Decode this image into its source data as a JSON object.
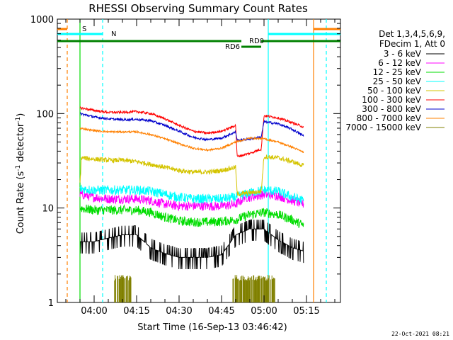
{
  "chart_data": {
    "type": "line",
    "title": "RHESSI Observing Summary Count Rates",
    "xlabel": "Start Time (16-Sep-13 03:46:42)",
    "ylabel_main": "Count Rate (s",
    "ylabel_sup1": "-1",
    "ylabel_mid": " detector",
    "ylabel_sup2": "-1",
    "ylabel_end": ")",
    "yscale": "log",
    "ylim": [
      1,
      1000
    ],
    "xlim_minutes": [
      -13,
      87
    ],
    "x_ticks": [
      {
        "label": "04:00",
        "minutes": 0
      },
      {
        "label": "04:15",
        "minutes": 15
      },
      {
        "label": "04:30",
        "minutes": 30
      },
      {
        "label": "04:45",
        "minutes": 45
      },
      {
        "label": "05:00",
        "minutes": 60
      },
      {
        "label": "05:15",
        "minutes": 75
      }
    ],
    "y_ticks": [
      {
        "label": "1",
        "value": 1
      },
      {
        "label": "10",
        "value": 10
      },
      {
        "label": "100",
        "value": 100
      },
      {
        "label": "1000",
        "value": 1000
      }
    ],
    "legend_header": [
      "Det 1,3,4,5,6,9,",
      "FDecim 1, Att 0"
    ],
    "series": [
      {
        "name": "3 - 6 keV",
        "color": "#000000",
        "noise": 0.12,
        "x": [
          -5,
          0,
          5,
          10,
          15,
          20,
          25,
          30,
          35,
          40,
          45,
          50,
          55,
          60,
          65,
          70,
          74
        ],
        "values": [
          4.4,
          4.4,
          4.8,
          5.2,
          5.2,
          3.8,
          3.3,
          3.0,
          3.0,
          3.0,
          3.2,
          5.2,
          6.0,
          6.0,
          4.6,
          3.8,
          3.5
        ]
      },
      {
        "name": "6 - 12 keV",
        "color": "#ff00ff",
        "noise": 0.05,
        "x": [
          -5,
          0,
          5,
          10,
          15,
          20,
          25,
          30,
          35,
          40,
          45,
          50,
          52,
          53,
          55,
          60,
          65,
          70,
          74
        ],
        "values": [
          14,
          13,
          12.5,
          12.5,
          12.5,
          12,
          11,
          10.5,
          10.5,
          10.5,
          10.5,
          11,
          12,
          13,
          13,
          14,
          13.5,
          12,
          11
        ]
      },
      {
        "name": "12 - 25 keV",
        "color": "#00dd00",
        "noise": 0.05,
        "x": [
          -5,
          0,
          5,
          10,
          15,
          20,
          25,
          30,
          35,
          40,
          45,
          50,
          55,
          60,
          65,
          70,
          74
        ],
        "values": [
          10,
          9.5,
          9.5,
          9.5,
          9.5,
          9,
          8,
          7.3,
          7.1,
          7.1,
          7.2,
          7.5,
          8.5,
          9,
          8.5,
          7.5,
          6.5
        ]
      },
      {
        "name": "25 - 50 keV",
        "color": "#00ffff",
        "noise": 0.05,
        "x": [
          -5,
          0,
          5,
          10,
          15,
          20,
          25,
          30,
          35,
          40,
          45,
          50,
          55,
          60,
          65,
          70,
          74
        ],
        "values": [
          16,
          15.5,
          15.5,
          15.5,
          15.5,
          15,
          14,
          13,
          12.5,
          12.5,
          12.5,
          13,
          14.5,
          15.5,
          15,
          13,
          12
        ]
      },
      {
        "name": "50 - 100 keV",
        "color": "#d4c400",
        "noise": 0.025,
        "x": [
          -5,
          -4.5,
          0,
          5,
          10,
          15,
          20,
          25,
          30,
          35,
          40,
          45,
          50,
          50.5,
          55,
          59,
          60,
          65,
          70,
          74
        ],
        "values": [
          18,
          34,
          33,
          32,
          32,
          31,
          29,
          27,
          25,
          24,
          24,
          25,
          27,
          14,
          14.5,
          15,
          35,
          34,
          31,
          28
        ]
      },
      {
        "name": "100 - 300 keV",
        "color": "#ff0000",
        "noise": 0.012,
        "x": [
          -5,
          0,
          5,
          10,
          15,
          20,
          25,
          30,
          35,
          40,
          45,
          50,
          50.5,
          55,
          59,
          60,
          65,
          70,
          74
        ],
        "values": [
          115,
          108,
          103,
          103,
          105,
          100,
          88,
          75,
          65,
          62,
          65,
          75,
          35,
          38,
          42,
          95,
          90,
          80,
          72
        ]
      },
      {
        "name": "300 - 800 keV",
        "color": "#0000cc",
        "noise": 0.012,
        "x": [
          -5,
          0,
          5,
          10,
          15,
          20,
          25,
          30,
          35,
          40,
          45,
          50,
          50.5,
          55,
          59,
          60,
          65,
          70,
          74
        ],
        "values": [
          100,
          92,
          88,
          86,
          87,
          84,
          75,
          65,
          56,
          53,
          55,
          64,
          52,
          54,
          56,
          82,
          78,
          68,
          58
        ]
      },
      {
        "name": "800 - 7000 keV",
        "color": "#ff8000",
        "noise": 0.01,
        "x": [
          -5,
          0,
          5,
          10,
          15,
          20,
          25,
          30,
          35,
          40,
          45,
          50,
          55,
          60,
          65,
          70,
          74
        ],
        "values": [
          70,
          66,
          64,
          64,
          64,
          60,
          54,
          48,
          43,
          41,
          43,
          50,
          55,
          54,
          50,
          44,
          39
        ]
      },
      {
        "name": "7000 - 15000 keV",
        "color": "#808000",
        "noise": 0.0,
        "x": [],
        "values": []
      }
    ],
    "annotations": [
      {
        "label": "S",
        "color": "#ff8000"
      },
      {
        "label": "N",
        "color": "#00ffff"
      },
      {
        "label": "RD0",
        "color": "#008000"
      },
      {
        "label": "RD6",
        "color": "#008000"
      }
    ]
  },
  "footer": {
    "timestamp": "22-Oct-2021 08:21"
  }
}
